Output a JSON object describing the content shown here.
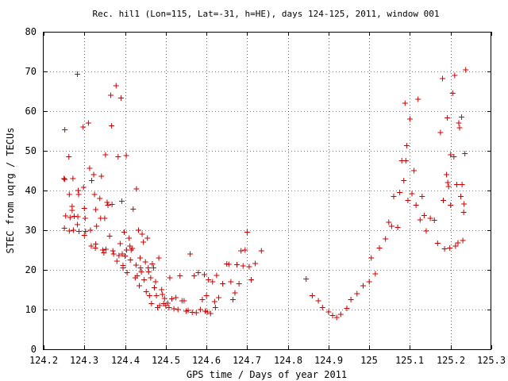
{
  "chart_data": {
    "type": "scatter",
    "title": "Rec. hil1 (Lon=115, Lat=-31, h=HE), days 124-125, 2011, window 001",
    "xlabel": "GPS time / Days of year 2011",
    "ylabel": "STEC from uqrg / TECUs",
    "xlim": [
      124.2,
      125.3
    ],
    "ylim": [
      0,
      80
    ],
    "xticks": [
      124.2,
      124.3,
      124.4,
      124.5,
      124.6,
      124.7,
      124.8,
      124.9,
      125.0,
      125.1,
      125.2,
      125.3
    ],
    "xtick_labels": [
      "124.2",
      "124.3",
      "124.4",
      "124.5",
      "124.6",
      "124.7",
      "124.8",
      "124.9",
      "125",
      "125.1",
      "125.2",
      "125.3"
    ],
    "yticks": [
      0,
      10,
      20,
      30,
      40,
      50,
      60,
      70,
      80
    ],
    "ytick_labels": [
      "0",
      "10",
      "20",
      "30",
      "40",
      "50",
      "60",
      "70",
      "80"
    ],
    "grid": true,
    "marker": "plus",
    "marker_color": "#cc0000",
    "series": [
      {
        "name": "STEC",
        "x": [
          124.25,
          124.252,
          124.251,
          124.252,
          124.254,
          124.262,
          124.263,
          124.265,
          124.263,
          124.27,
          124.272,
          124.273,
          124.27,
          124.275,
          124.283,
          124.285,
          124.286,
          124.284,
          124.283,
          124.287,
          124.297,
          124.298,
          124.3,
          124.302,
          124.303,
          124.3,
          124.31,
          124.313,
          124.315,
          124.317,
          124.318,
          124.323,
          124.325,
          124.328,
          124.33,
          124.327,
          124.328,
          124.338,
          124.34,
          124.342,
          124.345,
          124.348,
          124.35,
          124.352,
          124.353,
          124.356,
          124.358,
          124.362,
          124.365,
          124.367,
          124.368,
          124.37,
          124.372,
          124.378,
          124.38,
          124.383,
          124.385,
          124.388,
          124.39,
          124.392,
          124.393,
          124.395,
          124.395,
          124.398,
          124.4,
          124.403,
          124.404,
          124.405,
          124.41,
          124.412,
          124.413,
          124.415,
          124.418,
          124.42,
          124.425,
          124.427,
          124.428,
          124.43,
          124.433,
          124.435,
          124.437,
          124.438,
          124.44,
          124.442,
          124.445,
          124.447,
          124.45,
          124.452,
          124.455,
          124.457,
          124.458,
          124.46,
          124.463,
          124.465,
          124.467,
          124.47,
          124.472,
          124.475,
          124.477,
          124.48,
          124.483,
          124.485,
          124.49,
          124.492,
          124.495,
          124.497,
          124.5,
          124.505,
          124.508,
          124.51,
          124.515,
          124.52,
          124.525,
          124.53,
          124.535,
          124.54,
          124.545,
          124.55,
          124.555,
          124.56,
          124.565,
          124.57,
          124.575,
          124.58,
          124.585,
          124.59,
          124.595,
          124.597,
          124.6,
          124.602,
          124.605,
          124.61,
          124.615,
          124.62,
          124.622,
          124.625,
          124.63,
          124.64,
          124.65,
          124.655,
          124.66,
          124.665,
          124.67,
          124.675,
          124.68,
          124.685,
          124.69,
          124.695,
          124.7,
          124.705,
          124.71,
          124.72,
          124.735,
          124.845,
          124.86,
          124.875,
          124.885,
          124.9,
          124.91,
          124.92,
          124.93,
          124.945,
          124.955,
          124.97,
          124.985,
          125.0,
          125.005,
          125.015,
          125.025,
          125.04,
          125.048,
          125.055,
          125.06,
          125.07,
          125.075,
          125.08,
          125.085,
          125.088,
          125.09,
          125.092,
          125.095,
          125.1,
          125.105,
          125.11,
          125.115,
          125.12,
          125.125,
          125.13,
          125.135,
          125.14,
          125.15,
          125.16,
          125.168,
          125.175,
          125.18,
          125.182,
          125.185,
          125.19,
          125.192,
          125.193,
          125.195,
          125.198,
          125.2,
          125.2,
          125.205,
          125.208,
          125.21,
          125.212,
          125.215,
          125.218,
          125.22,
          125.222,
          125.225,
          125.227,
          125.228,
          125.23,
          125.232,
          125.233,
          125.235,
          125.237
        ],
        "y": [
          43.0,
          55.3,
          30.5,
          42.8,
          33.6,
          48.5,
          39.0,
          33.2,
          29.8,
          36.0,
          43.0,
          30.0,
          35.0,
          33.5,
          69.3,
          40.0,
          39.0,
          33.4,
          31.4,
          29.7,
          56.0,
          40.8,
          35.5,
          33.0,
          29.7,
          28.7,
          57.0,
          45.6,
          30.0,
          26.0,
          42.5,
          44.0,
          39.0,
          35.2,
          31.0,
          25.5,
          26.5,
          38.0,
          33.0,
          43.6,
          25.0,
          24.3,
          33.0,
          49.0,
          25.2,
          37.0,
          36.3,
          28.5,
          64.0,
          56.3,
          36.5,
          24.8,
          24.0,
          66.4,
          22.2,
          48.5,
          23.6,
          26.6,
          63.3,
          37.3,
          24.0,
          21.1,
          20.5,
          29.5,
          23.5,
          48.8,
          25.0,
          19.3,
          28.0,
          26.0,
          22.5,
          25.0,
          25.4,
          35.3,
          18.0,
          21.2,
          40.4,
          18.5,
          30.0,
          16.0,
          23.0,
          20.5,
          19.5,
          29.0,
          27.0,
          17.5,
          22.0,
          14.5,
          28.0,
          20.5,
          19.5,
          13.5,
          18.0,
          11.5,
          21.5,
          20.5,
          15.5,
          17.0,
          13.5,
          10.5,
          23.0,
          11.0,
          15.0,
          13.8,
          11.5,
          12.8,
          11.0,
          11.6,
          10.5,
          18.0,
          12.7,
          10.2,
          13.0,
          10.0,
          18.5,
          12.2,
          12.2,
          9.6,
          9.8,
          24.0,
          9.3,
          18.5,
          9.2,
          19.3,
          10.0,
          12.5,
          18.8,
          9.6,
          13.5,
          9.4,
          17.5,
          9.0,
          17.0,
          12.0,
          10.5,
          18.6,
          13.0,
          16.5,
          21.5,
          21.4,
          17.0,
          12.5,
          14.2,
          21.3,
          16.5,
          24.8,
          21.0,
          25.0,
          29.5,
          20.8,
          17.5,
          21.6,
          24.8,
          17.7,
          13.5,
          12.2,
          10.5,
          9.4,
          8.5,
          8.0,
          8.8,
          10.3,
          12.5,
          14.0,
          16.0,
          17.0,
          23.0,
          19.0,
          25.5,
          27.8,
          32.0,
          31.0,
          38.5,
          30.7,
          39.5,
          47.5,
          42.5,
          62.0,
          47.5,
          51.3,
          37.5,
          58.0,
          39.2,
          45.0,
          36.3,
          63.0,
          32.6,
          38.5,
          33.7,
          29.8,
          33.0,
          32.5,
          26.7,
          54.6,
          68.2,
          37.5,
          25.3,
          44.0,
          58.3,
          42.0,
          41.0,
          25.5,
          49.0,
          36.3,
          64.5,
          48.5,
          69.0,
          26.0,
          41.5,
          26.8,
          57.0,
          55.8,
          38.5,
          58.5,
          41.5,
          27.4,
          34.5,
          36.6,
          49.3,
          70.4
        ]
      }
    ]
  }
}
